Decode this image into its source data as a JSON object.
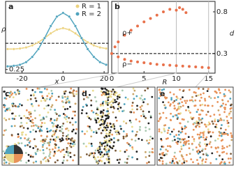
{
  "charts": [
    {
      "type": "line",
      "panel": "a",
      "xlabel": "x",
      "ylabel": "ρ",
      "x": [
        -27,
        -24,
        -21,
        -18,
        -15,
        -12,
        -9,
        -6,
        -3,
        0,
        3,
        6,
        9,
        12,
        15,
        18,
        21
      ],
      "series": [
        {
          "name": "R = 1",
          "color": "#ecd27e",
          "values": [
            0.289,
            0.289,
            0.29,
            0.292,
            0.296,
            0.302,
            0.31,
            0.319,
            0.326,
            0.329,
            0.326,
            0.319,
            0.31,
            0.302,
            0.296,
            0.292,
            0.29
          ]
        },
        {
          "name": "R = 2",
          "color": "#4fa3bd",
          "values": [
            0.256,
            0.257,
            0.259,
            0.264,
            0.274,
            0.289,
            0.31,
            0.333,
            0.351,
            0.358,
            0.351,
            0.333,
            0.31,
            0.289,
            0.274,
            0.264,
            0.259
          ]
        }
      ],
      "hline": 0.3,
      "xlim": [
        -28,
        22
      ],
      "ylim": [
        0.243,
        0.38
      ],
      "xticks": [
        -20,
        0,
        20
      ],
      "yticks": [
        0.25
      ]
    },
    {
      "type": "scatter",
      "panel": "b",
      "xlabel": "R",
      "ylabel": "d",
      "series": [
        {
          "name": "ρ+",
          "color": "#e8714b",
          "x": [
            0,
            0.5,
            1,
            2,
            3,
            4,
            5,
            6,
            7,
            8,
            9,
            10,
            10.5,
            11,
            11.5
          ],
          "values": [
            0.3,
            0.38,
            0.44,
            0.52,
            0.58,
            0.63,
            0.68,
            0.72,
            0.76,
            0.8,
            0.83,
            0.82,
            0.85,
            0.83,
            0.79
          ]
        },
        {
          "name": "ρ−",
          "color": "#e8714b",
          "x": [
            0,
            1,
            2,
            3,
            4,
            5,
            6,
            7,
            8,
            9,
            10,
            11,
            12,
            13,
            14,
            15
          ],
          "values": [
            0.3,
            0.26,
            0.23,
            0.21,
            0.2,
            0.19,
            0.18,
            0.17,
            0.165,
            0.16,
            0.155,
            0.15,
            0.145,
            0.14,
            0.135,
            0.13
          ]
        }
      ],
      "hline": 0.3,
      "vlines": [
        1,
        10,
        15
      ],
      "xlim": [
        0,
        16
      ],
      "ylim": [
        0.065,
        0.925
      ],
      "xticks": [
        0,
        5,
        10,
        15
      ],
      "yticks": [
        0.3,
        0.8
      ]
    }
  ],
  "snapshots": [
    "c",
    "d",
    "e"
  ]
}
